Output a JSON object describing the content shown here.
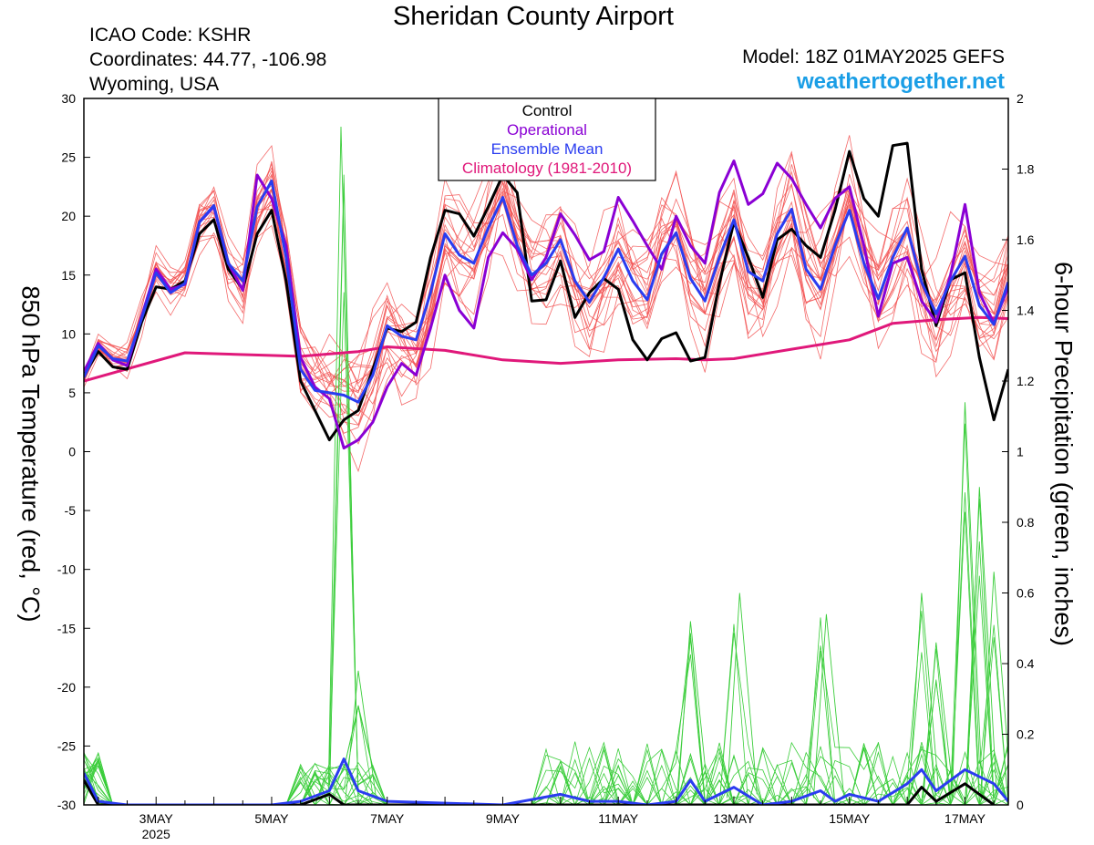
{
  "header": {
    "title": "Sheridan County Airport",
    "icao": "ICAO Code: KSHR",
    "coords": "Coordinates: 44.77, -106.98",
    "region": "Wyoming, USA",
    "model": "Model: 18Z 01MAY2025 GEFS",
    "website": "weathertogether.net"
  },
  "chart_data": {
    "type": "line",
    "title": "Sheridan County Airport",
    "ylabel": "850 hPa Temperature (red, °C)",
    "y2label": "6-hour Precipitation (green, inches)",
    "ylim": [
      -30,
      30
    ],
    "y2lim": [
      0,
      2
    ],
    "yticks": [
      -30,
      -25,
      -20,
      -15,
      -10,
      -5,
      0,
      5,
      10,
      15,
      20,
      25,
      30
    ],
    "y2ticks": [
      0,
      0.2,
      0.4,
      0.6,
      0.8,
      1,
      1.2,
      1.4,
      1.6,
      1.8,
      2
    ],
    "y2ticklabels": [
      "0",
      "0.2",
      "0.4",
      "0.6",
      "0.8",
      "1",
      "1.2",
      "1.4",
      "1.6",
      "1.8",
      "2"
    ],
    "xlim": [
      1.75,
      17.75
    ],
    "xticks": [
      {
        "day": 3,
        "label": "3MAY",
        "sub": "2025"
      },
      {
        "day": 5,
        "label": "5MAY",
        "sub": ""
      },
      {
        "day": 7,
        "label": "7MAY",
        "sub": ""
      },
      {
        "day": 9,
        "label": "9MAY",
        "sub": ""
      },
      {
        "day": 11,
        "label": "11MAY",
        "sub": ""
      },
      {
        "day": 13,
        "label": "13MAY",
        "sub": ""
      },
      {
        "day": 15,
        "label": "15MAY",
        "sub": ""
      },
      {
        "day": 17,
        "label": "17MAY",
        "sub": ""
      }
    ],
    "colors": {
      "control": "#000000",
      "operational": "#8a00d4",
      "mean": "#2a3cf0",
      "climatology": "#e0187a",
      "members": "#f25050",
      "precip": "#3acd3a"
    },
    "legend": [
      {
        "label": "Control",
        "color": "#000000"
      },
      {
        "label": "Operational",
        "color": "#8a00d4"
      },
      {
        "label": "Ensemble Mean",
        "color": "#2a3cf0"
      },
      {
        "label": "Climatology (1981-2010)",
        "color": "#e0187a"
      }
    ],
    "legend_position": "top-center",
    "series": [
      {
        "key": "climatology",
        "points": [
          [
            1.75,
            6.0
          ],
          [
            3.5,
            8.4
          ],
          [
            5.5,
            8.1
          ],
          [
            6.5,
            8.5
          ],
          [
            7.0,
            8.9
          ],
          [
            8.0,
            8.6
          ],
          [
            9.0,
            7.8
          ],
          [
            10.0,
            7.5
          ],
          [
            11.0,
            7.8
          ],
          [
            12.0,
            7.9
          ],
          [
            12.5,
            7.8
          ],
          [
            13.0,
            7.9
          ],
          [
            13.5,
            8.3
          ],
          [
            14.0,
            8.7
          ],
          [
            14.5,
            9.1
          ],
          [
            15.0,
            9.5
          ],
          [
            15.75,
            10.9
          ],
          [
            16.5,
            11.2
          ],
          [
            17.25,
            11.4
          ],
          [
            17.75,
            11.3
          ]
        ]
      },
      {
        "key": "control",
        "points": [
          [
            1.75,
            6.5
          ],
          [
            2.0,
            8.5
          ],
          [
            2.25,
            7.2
          ],
          [
            2.5,
            7.0
          ],
          [
            2.75,
            11.0
          ],
          [
            3.0,
            14.0
          ],
          [
            3.25,
            13.8
          ],
          [
            3.5,
            14.5
          ],
          [
            3.75,
            18.5
          ],
          [
            4.0,
            19.7
          ],
          [
            4.25,
            15.5
          ],
          [
            4.5,
            13.8
          ],
          [
            4.75,
            18.5
          ],
          [
            5.0,
            20.5
          ],
          [
            5.25,
            14.5
          ],
          [
            5.5,
            6.0
          ],
          [
            5.75,
            3.5
          ],
          [
            6.0,
            1.0
          ],
          [
            6.25,
            2.7
          ],
          [
            6.5,
            3.5
          ],
          [
            6.75,
            7.0
          ],
          [
            7.0,
            10.5
          ],
          [
            7.25,
            10.2
          ],
          [
            7.5,
            11.0
          ],
          [
            7.75,
            16.5
          ],
          [
            8.0,
            20.5
          ],
          [
            8.25,
            20.2
          ],
          [
            8.5,
            18.3
          ],
          [
            8.75,
            20.8
          ],
          [
            9.0,
            23.5
          ],
          [
            9.25,
            22.0
          ],
          [
            9.5,
            12.8
          ],
          [
            9.75,
            12.9
          ],
          [
            10.0,
            16.2
          ],
          [
            10.25,
            11.4
          ],
          [
            10.5,
            13.5
          ],
          [
            10.75,
            14.7
          ],
          [
            11.0,
            13.8
          ],
          [
            11.25,
            9.5
          ],
          [
            11.5,
            7.8
          ],
          [
            11.75,
            9.6
          ],
          [
            12.0,
            10.1
          ],
          [
            12.25,
            7.7
          ],
          [
            12.5,
            8.0
          ],
          [
            12.75,
            14.3
          ],
          [
            13.0,
            19.5
          ],
          [
            13.25,
            16.5
          ],
          [
            13.5,
            13.1
          ],
          [
            13.75,
            18.0
          ],
          [
            14.0,
            18.9
          ],
          [
            14.25,
            17.5
          ],
          [
            14.5,
            16.5
          ],
          [
            14.75,
            20.5
          ],
          [
            15.0,
            25.5
          ],
          [
            15.25,
            21.5
          ],
          [
            15.5,
            20.0
          ],
          [
            15.75,
            26.0
          ],
          [
            16.0,
            26.2
          ],
          [
            16.25,
            15.5
          ],
          [
            16.5,
            10.7
          ],
          [
            16.75,
            14.6
          ],
          [
            17.0,
            15.2
          ],
          [
            17.25,
            8.0
          ],
          [
            17.5,
            2.7
          ],
          [
            17.75,
            7.0
          ]
        ]
      },
      {
        "key": "operational",
        "points": [
          [
            1.75,
            6.8
          ],
          [
            2.0,
            9.2
          ],
          [
            2.25,
            7.8
          ],
          [
            2.5,
            7.3
          ],
          [
            2.75,
            11.5
          ],
          [
            3.0,
            15.5
          ],
          [
            3.25,
            13.8
          ],
          [
            3.5,
            14.2
          ],
          [
            3.75,
            19.5
          ],
          [
            4.0,
            20.8
          ],
          [
            4.25,
            16.0
          ],
          [
            4.5,
            13.7
          ],
          [
            4.75,
            23.5
          ],
          [
            5.0,
            21.5
          ],
          [
            5.25,
            17.5
          ],
          [
            5.5,
            8.0
          ],
          [
            5.75,
            5.5
          ],
          [
            6.0,
            4.5
          ],
          [
            6.25,
            0.3
          ],
          [
            6.5,
            1.0
          ],
          [
            6.75,
            2.5
          ],
          [
            7.0,
            5.5
          ],
          [
            7.25,
            7.5
          ],
          [
            7.5,
            6.5
          ],
          [
            7.75,
            10.5
          ],
          [
            8.0,
            15.0
          ],
          [
            8.25,
            12.0
          ],
          [
            8.5,
            10.5
          ],
          [
            8.75,
            16.5
          ],
          [
            9.0,
            18.6
          ],
          [
            9.25,
            17.2
          ],
          [
            9.5,
            14.6
          ],
          [
            9.75,
            16.5
          ],
          [
            10.0,
            20.2
          ],
          [
            10.25,
            18.4
          ],
          [
            10.5,
            16.3
          ],
          [
            10.75,
            17.0
          ],
          [
            11.0,
            21.6
          ],
          [
            11.25,
            19.6
          ],
          [
            11.5,
            17.5
          ],
          [
            11.75,
            15.5
          ],
          [
            12.0,
            20.0
          ],
          [
            12.25,
            17.5
          ],
          [
            12.5,
            16.0
          ],
          [
            12.75,
            22.0
          ],
          [
            13.0,
            24.7
          ],
          [
            13.25,
            21.0
          ],
          [
            13.5,
            21.9
          ],
          [
            13.75,
            24.5
          ],
          [
            14.0,
            23.2
          ],
          [
            14.25,
            21.0
          ],
          [
            14.5,
            19.0
          ],
          [
            14.75,
            21.5
          ],
          [
            15.0,
            22.5
          ],
          [
            15.25,
            17.5
          ],
          [
            15.5,
            11.5
          ],
          [
            15.75,
            16.0
          ],
          [
            16.0,
            16.5
          ],
          [
            16.25,
            12.8
          ],
          [
            16.5,
            11.0
          ],
          [
            16.75,
            15.0
          ],
          [
            17.0,
            21.0
          ],
          [
            17.25,
            13.5
          ],
          [
            17.5,
            10.9
          ],
          [
            17.75,
            14.0
          ]
        ]
      },
      {
        "key": "mean",
        "points": [
          [
            1.75,
            6.3
          ],
          [
            2.0,
            9.0
          ],
          [
            2.25,
            7.9
          ],
          [
            2.5,
            7.7
          ],
          [
            2.75,
            11.3
          ],
          [
            3.0,
            15.2
          ],
          [
            3.25,
            13.5
          ],
          [
            3.5,
            14.3
          ],
          [
            3.75,
            19.5
          ],
          [
            4.0,
            20.9
          ],
          [
            4.25,
            16.0
          ],
          [
            4.5,
            14.5
          ],
          [
            4.75,
            20.8
          ],
          [
            5.0,
            23.0
          ],
          [
            5.25,
            16.5
          ],
          [
            5.5,
            7.0
          ],
          [
            5.75,
            5.2
          ],
          [
            6.0,
            5.0
          ],
          [
            6.25,
            4.8
          ],
          [
            6.5,
            4.2
          ],
          [
            6.75,
            6.5
          ],
          [
            7.0,
            10.7
          ],
          [
            7.25,
            9.8
          ],
          [
            7.5,
            9.5
          ],
          [
            7.75,
            13.5
          ],
          [
            8.0,
            18.5
          ],
          [
            8.25,
            16.7
          ],
          [
            8.5,
            16.0
          ],
          [
            8.75,
            19.0
          ],
          [
            9.0,
            21.6
          ],
          [
            9.25,
            17.5
          ],
          [
            9.5,
            15.0
          ],
          [
            9.75,
            16.0
          ],
          [
            10.0,
            18.0
          ],
          [
            10.25,
            14.5
          ],
          [
            10.5,
            12.7
          ],
          [
            10.75,
            14.8
          ],
          [
            11.0,
            17.2
          ],
          [
            11.25,
            14.5
          ],
          [
            11.5,
            12.9
          ],
          [
            11.75,
            16.8
          ],
          [
            12.0,
            18.6
          ],
          [
            12.25,
            14.7
          ],
          [
            12.5,
            12.8
          ],
          [
            12.75,
            16.5
          ],
          [
            13.0,
            19.7
          ],
          [
            13.25,
            15.3
          ],
          [
            13.5,
            14.5
          ],
          [
            13.75,
            18.5
          ],
          [
            14.0,
            20.6
          ],
          [
            14.25,
            15.5
          ],
          [
            14.5,
            13.8
          ],
          [
            14.75,
            17.5
          ],
          [
            15.0,
            20.5
          ],
          [
            15.25,
            16.0
          ],
          [
            15.5,
            13.0
          ],
          [
            15.75,
            16.5
          ],
          [
            16.0,
            19.0
          ],
          [
            16.25,
            14.4
          ],
          [
            16.5,
            11.7
          ],
          [
            16.75,
            14.5
          ],
          [
            17.0,
            16.6
          ],
          [
            17.25,
            12.4
          ],
          [
            17.5,
            10.8
          ],
          [
            17.75,
            14.4
          ]
        ]
      },
      {
        "key": "precip_mean",
        "axis": "y2",
        "points": [
          [
            1.75,
            0.09
          ],
          [
            2.0,
            0.01
          ],
          [
            2.5,
            0.0
          ],
          [
            5.0,
            0.0
          ],
          [
            5.5,
            0.01
          ],
          [
            6.0,
            0.04
          ],
          [
            6.25,
            0.13
          ],
          [
            6.5,
            0.04
          ],
          [
            7.0,
            0.01
          ],
          [
            9.0,
            0.0
          ],
          [
            10.0,
            0.03
          ],
          [
            10.5,
            0.01
          ],
          [
            11.0,
            0.01
          ],
          [
            11.5,
            0.0
          ],
          [
            12.0,
            0.01
          ],
          [
            12.25,
            0.07
          ],
          [
            12.5,
            0.01
          ],
          [
            13.0,
            0.05
          ],
          [
            13.5,
            0.0
          ],
          [
            14.0,
            0.01
          ],
          [
            14.5,
            0.04
          ],
          [
            14.75,
            0.01
          ],
          [
            15.0,
            0.03
          ],
          [
            15.5,
            0.01
          ],
          [
            16.0,
            0.06
          ],
          [
            16.25,
            0.1
          ],
          [
            16.5,
            0.04
          ],
          [
            17.0,
            0.1
          ],
          [
            17.5,
            0.06
          ],
          [
            17.75,
            0.01
          ]
        ]
      },
      {
        "key": "precip_control",
        "axis": "y2",
        "points": [
          [
            1.75,
            0.07
          ],
          [
            2.0,
            0.0
          ],
          [
            5.5,
            0.0
          ],
          [
            6.0,
            0.03
          ],
          [
            6.25,
            0.0
          ],
          [
            16.0,
            0.0
          ],
          [
            16.25,
            0.05
          ],
          [
            16.5,
            0.01
          ],
          [
            17.0,
            0.06
          ],
          [
            17.25,
            0.03
          ],
          [
            17.5,
            0.0
          ]
        ]
      }
    ],
    "member_count": 20,
    "precip_spikes": [
      {
        "day": 6.2,
        "value": 1.92
      },
      {
        "day": 17.0,
        "value": 1.14
      },
      {
        "day": 17.25,
        "value": 0.9
      },
      {
        "day": 17.5,
        "value": 0.66
      },
      {
        "day": 13.1,
        "value": 0.6
      },
      {
        "day": 16.25,
        "value": 0.6
      },
      {
        "day": 12.25,
        "value": 0.52
      },
      {
        "day": 14.6,
        "value": 0.54
      },
      {
        "day": 16.5,
        "value": 0.46
      },
      {
        "day": 6.5,
        "value": 0.38
      }
    ]
  }
}
